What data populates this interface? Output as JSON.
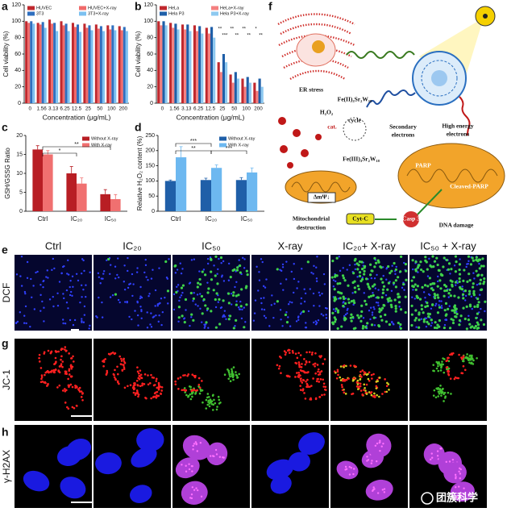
{
  "panel_labels": [
    "a",
    "b",
    "c",
    "d",
    "e",
    "f",
    "g",
    "h"
  ],
  "chart_data": [
    {
      "type": "bar",
      "ylabel": "Cell viability (%)",
      "xlabel": "Concentration (μg/mL)",
      "categories": [
        "0",
        "1.56",
        "3.13",
        "6.25",
        "12.5",
        "25",
        "50",
        "100",
        "200"
      ],
      "series": [
        {
          "name": "HUVEC",
          "color": "#c0282d",
          "values": [
            100,
            98,
            102,
            100,
            98,
            97,
            96,
            95,
            94
          ]
        },
        {
          "name": "HUVEC+X-ray",
          "color": "#f06a6a",
          "values": [
            98,
            96,
            97,
            95,
            93,
            92,
            91,
            90,
            89
          ]
        },
        {
          "name": "3T3",
          "color": "#2f6fbf",
          "values": [
            100,
            99,
            98,
            97,
            96,
            95,
            94,
            95,
            93
          ]
        },
        {
          "name": "3T3+X-ray",
          "color": "#7cc0f0",
          "values": [
            97,
            92,
            88,
            88,
            87,
            89,
            88,
            89,
            88
          ]
        }
      ],
      "ylim": [
        0,
        120
      ],
      "yticks": [
        0,
        20,
        40,
        60,
        80,
        100,
        120
      ],
      "legend": "top"
    },
    {
      "type": "bar",
      "ylabel": "Cell viability (%)",
      "xlabel": "Concentration (μg/mL)",
      "categories": [
        "0",
        "1.56",
        "3.13",
        "6.25",
        "12.5",
        "25",
        "50",
        "100",
        "200"
      ],
      "series": [
        {
          "name": "HeLa",
          "color": "#c0282d",
          "values": [
            100,
            98,
            96,
            95,
            92,
            50,
            35,
            30,
            25
          ]
        },
        {
          "name": "HeLa+X-ray",
          "color": "#f48080",
          "values": [
            95,
            92,
            90,
            88,
            85,
            38,
            25,
            20,
            15
          ]
        },
        {
          "name": "Hela P3",
          "color": "#1f5fa8",
          "values": [
            100,
            97,
            96,
            94,
            93,
            60,
            38,
            32,
            30
          ]
        },
        {
          "name": "Hela P3+X-ray",
          "color": "#8ec9f0",
          "values": [
            95,
            90,
            88,
            85,
            80,
            50,
            30,
            25,
            20
          ]
        }
      ],
      "ylim": [
        0,
        120
      ],
      "yticks": [
        0,
        20,
        40,
        60,
        80,
        100,
        120
      ],
      "legend": "top",
      "significance": [
        "**",
        "***",
        "**",
        "**",
        "**",
        "**",
        "*",
        "**"
      ]
    },
    {
      "type": "bar",
      "ylabel": "GSH/GSSG Ratio",
      "categories": [
        "Ctrl",
        "IC₂₀",
        "IC₅₀"
      ],
      "series": [
        {
          "name": "Without X-ray",
          "color": "#b81e24",
          "values": [
            16.3,
            10,
            4.5
          ],
          "errors": [
            1,
            1.8,
            1.2
          ]
        },
        {
          "name": "With X-ray",
          "color": "#f07070",
          "values": [
            15,
            7.3,
            3.2
          ],
          "errors": [
            1,
            1.5,
            1.2
          ]
        }
      ],
      "ylim": [
        0,
        20
      ],
      "yticks": [
        0,
        5,
        10,
        15,
        20
      ],
      "legend": "upper right",
      "significance": [
        "*",
        "**"
      ]
    },
    {
      "type": "bar",
      "ylabel": "Relative H₂O₂ content (%)",
      "categories": [
        "Ctrl",
        "IC₂₀",
        "IC₅₀"
      ],
      "series": [
        {
          "name": "Without X-ray",
          "color": "#1f5fa8",
          "values": [
            100,
            103,
            103
          ],
          "errors": [
            3,
            6,
            8
          ]
        },
        {
          "name": "With X-ray",
          "color": "#6db8f0",
          "values": [
            178,
            143,
            128
          ],
          "errors": [
            35,
            10,
            15
          ]
        }
      ],
      "ylim": [
        0,
        250
      ],
      "yticks": [
        0,
        50,
        100,
        150,
        200,
        250
      ],
      "legend": "upper right",
      "significance": [
        "***",
        "**",
        "***"
      ]
    }
  ],
  "diagram": {
    "labels": [
      "ER stress",
      "H₂O₂",
      "cat.",
      "cycle",
      "Fe(II)₃Sr₂W₁₈",
      "Fe(III)₃Sr₂W₁₈",
      "Secondary",
      "electrons",
      "High energy",
      "electrons",
      "ΔmΨ↓",
      "Mitochondrial",
      "destruction",
      "Cyt-C",
      "Casp 3",
      "DNA damage",
      "PARP",
      "Cleaved-PARP"
    ]
  },
  "micrographs": {
    "columns": [
      "Ctrl",
      "IC₂₀",
      "IC₅₀",
      "X-ray",
      "IC₂₀+ X-ray",
      "IC₅₀ + X-ray"
    ],
    "rows": [
      "DCF",
      "JC-1",
      "γ-H2AX"
    ]
  },
  "watermark": "团簇科学"
}
